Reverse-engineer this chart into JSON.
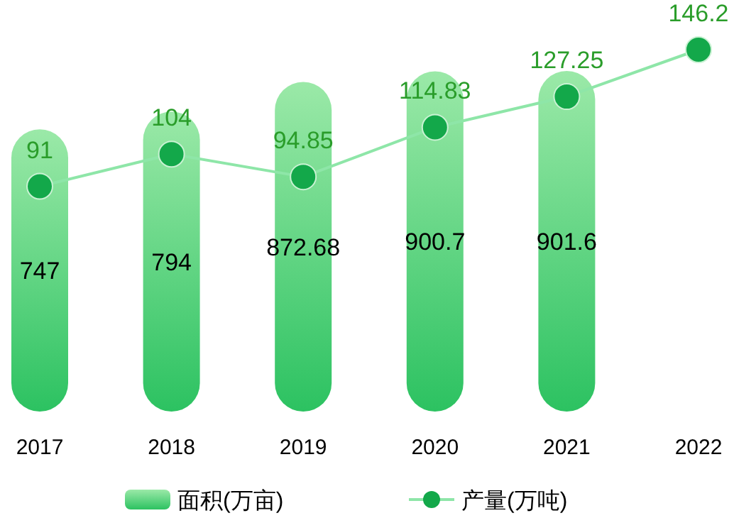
{
  "chart_data": {
    "type": "bar",
    "categories": [
      "2017",
      "2018",
      "2019",
      "2020",
      "2021",
      "2022"
    ],
    "series": [
      {
        "name": "面积(万亩)",
        "color": "#2cc261",
        "values": [
          747,
          794,
          872.68,
          900.7,
          901.6,
          null
        ]
      },
      {
        "name": "产量(万吨)",
        "type": "line",
        "axis": "y2",
        "color": "#8ee6a8",
        "values": [
          91,
          104,
          94.85,
          114.83,
          127.25,
          146.2
        ]
      }
    ],
    "data_labels": true,
    "marker": "circle",
    "legend": "bottom"
  }
}
